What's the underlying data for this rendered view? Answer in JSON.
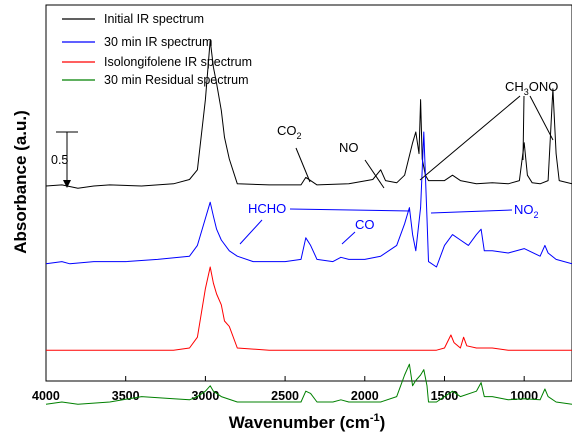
{
  "chart_data": {
    "type": "line",
    "xlabel": "Wavenumber (cm",
    "xlabel_sup": "-1",
    "xlabel_close": ")",
    "ylabel": "Absorbance (a.u.)",
    "xlim": [
      4000,
      700
    ],
    "xreversed": true,
    "x_ticks": [
      4000,
      3500,
      3000,
      2500,
      2000,
      1500,
      1000
    ],
    "y_ticks_shown": false,
    "legend_position": "top-left",
    "scale_bar_label": "0.5",
    "colors": {
      "initial": "#000000",
      "min30": "#0000ff",
      "isolongifolene": "#ff0000",
      "residual": "#008000",
      "axis": "#000000"
    },
    "series": [
      {
        "name": "Initial IR spectrum",
        "color": "#000000",
        "baseline": 0,
        "points": [
          [
            4000,
            0
          ],
          [
            3900,
            0.01
          ],
          [
            3800,
            -0.02
          ],
          [
            3700,
            0
          ],
          [
            3600,
            0.01
          ],
          [
            3400,
            0
          ],
          [
            3200,
            0.02
          ],
          [
            3100,
            0.06
          ],
          [
            3050,
            0.15
          ],
          [
            3000,
            0.8
          ],
          [
            2970,
            1.35
          ],
          [
            2950,
            1.1
          ],
          [
            2930,
            0.95
          ],
          [
            2900,
            0.7
          ],
          [
            2880,
            0.45
          ],
          [
            2850,
            0.25
          ],
          [
            2800,
            0.02
          ],
          [
            2600,
            0.01
          ],
          [
            2400,
            0.01
          ],
          [
            2370,
            0.08
          ],
          [
            2340,
            0.05
          ],
          [
            2300,
            0.01
          ],
          [
            2100,
            0.02
          ],
          [
            1950,
            0.06
          ],
          [
            1900,
            0.15
          ],
          [
            1870,
            0.05
          ],
          [
            1800,
            0.03
          ],
          [
            1750,
            0.1
          ],
          [
            1700,
            0.4
          ],
          [
            1680,
            0.5
          ],
          [
            1660,
            0.3
          ],
          [
            1650,
            0.8
          ],
          [
            1640,
            0.25
          ],
          [
            1620,
            0.1
          ],
          [
            1600,
            0.05
          ],
          [
            1500,
            0.05
          ],
          [
            1450,
            0.1
          ],
          [
            1400,
            0.05
          ],
          [
            1300,
            0.02
          ],
          [
            1200,
            0.03
          ],
          [
            1100,
            0.02
          ],
          [
            1030,
            0.05
          ],
          [
            1000,
            0.4
          ],
          [
            980,
            0.1
          ],
          [
            950,
            0.03
          ],
          [
            900,
            0.02
          ],
          [
            850,
            0.05
          ],
          [
            820,
            0.9
          ],
          [
            800,
            0.3
          ],
          [
            780,
            0.05
          ],
          [
            700,
            0.02
          ]
        ]
      },
      {
        "name": "30 min IR spectrum",
        "color": "#0000ff",
        "baseline": -0.72,
        "points": [
          [
            4000,
            -0.72
          ],
          [
            3900,
            -0.7
          ],
          [
            3850,
            -0.72
          ],
          [
            3700,
            -0.7
          ],
          [
            3500,
            -0.7
          ],
          [
            3300,
            -0.68
          ],
          [
            3100,
            -0.65
          ],
          [
            3050,
            -0.55
          ],
          [
            3000,
            -0.3
          ],
          [
            2970,
            -0.15
          ],
          [
            2950,
            -0.28
          ],
          [
            2930,
            -0.4
          ],
          [
            2900,
            -0.5
          ],
          [
            2850,
            -0.6
          ],
          [
            2800,
            -0.65
          ],
          [
            2700,
            -0.7
          ],
          [
            2500,
            -0.7
          ],
          [
            2400,
            -0.68
          ],
          [
            2370,
            -0.48
          ],
          [
            2340,
            -0.55
          ],
          [
            2300,
            -0.68
          ],
          [
            2200,
            -0.7
          ],
          [
            2150,
            -0.66
          ],
          [
            2100,
            -0.68
          ],
          [
            2000,
            -0.68
          ],
          [
            1900,
            -0.65
          ],
          [
            1800,
            -0.55
          ],
          [
            1750,
            -0.35
          ],
          [
            1720,
            -0.2
          ],
          [
            1700,
            -0.45
          ],
          [
            1680,
            -0.6
          ],
          [
            1650,
            -0.2
          ],
          [
            1630,
            0.5
          ],
          [
            1610,
            -0.3
          ],
          [
            1600,
            -0.7
          ],
          [
            1550,
            -0.75
          ],
          [
            1500,
            -0.55
          ],
          [
            1450,
            -0.45
          ],
          [
            1400,
            -0.5
          ],
          [
            1350,
            -0.55
          ],
          [
            1300,
            -0.45
          ],
          [
            1270,
            -0.4
          ],
          [
            1250,
            -0.6
          ],
          [
            1200,
            -0.6
          ],
          [
            1100,
            -0.62
          ],
          [
            1000,
            -0.58
          ],
          [
            900,
            -0.65
          ],
          [
            870,
            -0.55
          ],
          [
            850,
            -0.62
          ],
          [
            800,
            -0.68
          ],
          [
            700,
            -0.72
          ]
        ]
      },
      {
        "name": "Isolongifolene IR spectrum",
        "color": "#ff0000",
        "baseline": -1.52,
        "points": [
          [
            4000,
            -1.52
          ],
          [
            3800,
            -1.52
          ],
          [
            3600,
            -1.52
          ],
          [
            3400,
            -1.52
          ],
          [
            3200,
            -1.52
          ],
          [
            3100,
            -1.5
          ],
          [
            3050,
            -1.4
          ],
          [
            3000,
            -0.95
          ],
          [
            2970,
            -0.75
          ],
          [
            2950,
            -0.9
          ],
          [
            2930,
            -1.0
          ],
          [
            2900,
            -1.1
          ],
          [
            2880,
            -1.25
          ],
          [
            2850,
            -1.3
          ],
          [
            2800,
            -1.5
          ],
          [
            2600,
            -1.52
          ],
          [
            2400,
            -1.52
          ],
          [
            2000,
            -1.52
          ],
          [
            1800,
            -1.52
          ],
          [
            1600,
            -1.52
          ],
          [
            1550,
            -1.52
          ],
          [
            1500,
            -1.5
          ],
          [
            1460,
            -1.38
          ],
          [
            1440,
            -1.45
          ],
          [
            1400,
            -1.5
          ],
          [
            1380,
            -1.4
          ],
          [
            1360,
            -1.48
          ],
          [
            1300,
            -1.5
          ],
          [
            1200,
            -1.5
          ],
          [
            1100,
            -1.52
          ],
          [
            1000,
            -1.52
          ],
          [
            900,
            -1.52
          ],
          [
            800,
            -1.52
          ],
          [
            700,
            -1.52
          ]
        ]
      },
      {
        "name": "30 min Residual spectrum",
        "color": "#008000",
        "baseline": -2.02,
        "points": [
          [
            4000,
            -2.02
          ],
          [
            3900,
            -2.0
          ],
          [
            3800,
            -2.02
          ],
          [
            3600,
            -2.0
          ],
          [
            3400,
            -1.95
          ],
          [
            3200,
            -1.97
          ],
          [
            3100,
            -1.98
          ],
          [
            3050,
            -1.95
          ],
          [
            3000,
            -1.9
          ],
          [
            2970,
            -1.85
          ],
          [
            2950,
            -1.9
          ],
          [
            2900,
            -1.95
          ],
          [
            2800,
            -2.0
          ],
          [
            2600,
            -2.0
          ],
          [
            2400,
            -2.0
          ],
          [
            2370,
            -1.9
          ],
          [
            2340,
            -1.92
          ],
          [
            2300,
            -2.0
          ],
          [
            2200,
            -2.0
          ],
          [
            2150,
            -1.98
          ],
          [
            2100,
            -2.0
          ],
          [
            1900,
            -2.0
          ],
          [
            1800,
            -1.95
          ],
          [
            1750,
            -1.75
          ],
          [
            1720,
            -1.65
          ],
          [
            1700,
            -1.85
          ],
          [
            1680,
            -1.8
          ],
          [
            1650,
            -1.75
          ],
          [
            1630,
            -1.7
          ],
          [
            1610,
            -1.85
          ],
          [
            1600,
            -2.0
          ],
          [
            1550,
            -2.0
          ],
          [
            1500,
            -1.95
          ],
          [
            1450,
            -1.9
          ],
          [
            1400,
            -1.95
          ],
          [
            1300,
            -1.9
          ],
          [
            1270,
            -1.82
          ],
          [
            1250,
            -1.95
          ],
          [
            1200,
            -1.95
          ],
          [
            1100,
            -1.98
          ],
          [
            1000,
            -1.97
          ],
          [
            900,
            -1.98
          ],
          [
            870,
            -1.88
          ],
          [
            850,
            -1.95
          ],
          [
            800,
            -2.0
          ],
          [
            700,
            -2.02
          ]
        ]
      }
    ],
    "annotations": {
      "co2_black": {
        "text": "CO",
        "sub": "2"
      },
      "no_black": {
        "text": "NO"
      },
      "ch3ono": {
        "text": "CH",
        "sub": "3",
        "tail": "ONO"
      },
      "hcho": {
        "text": "HCHO"
      },
      "co_blue": {
        "text": "CO"
      },
      "no2_blue": {
        "text": "NO",
        "sub": "2"
      }
    }
  }
}
